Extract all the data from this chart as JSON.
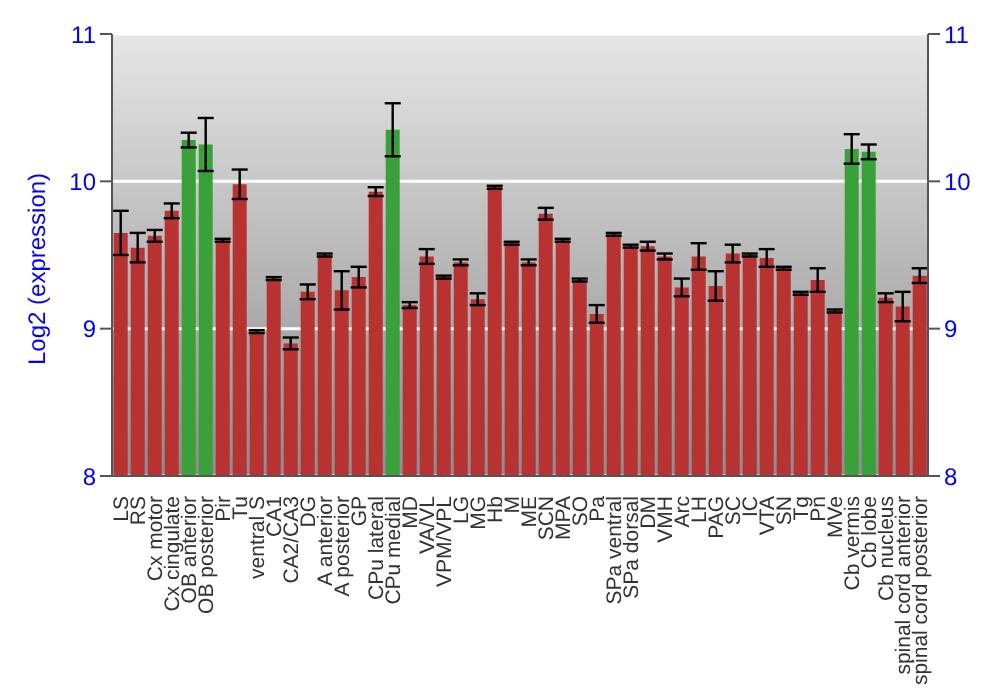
{
  "chart_data": {
    "type": "bar",
    "ylabel": "Log2 (expression)",
    "categories": [
      "LS",
      "RS",
      "Cx motor",
      "Cx cingulate",
      "OB anterior",
      "OB posterior",
      "Pir",
      "Tu",
      "ventral S",
      "CA1",
      "CA2/CA3",
      "DG",
      "A anterior",
      "A posterior",
      "GP",
      "CPu lateral",
      "CPu medial",
      "MD",
      "VA/VL",
      "VPM/VPL",
      "LG",
      "MG",
      "Hb",
      "M",
      "ME",
      "SCN",
      "MPA",
      "SO",
      "Pa",
      "SPa ventral",
      "SPa dorsal",
      "DM",
      "VMH",
      "Arc",
      "LH",
      "PAG",
      "SC",
      "IC",
      "VTA",
      "SN",
      "Tg",
      "Pn",
      "MVe",
      "Cb vermis",
      "Cb lobe",
      "Cb nucleus",
      "spinal cord anterior",
      "spinal cord posterior"
    ],
    "values": [
      9.65,
      9.55,
      9.63,
      9.8,
      10.28,
      10.25,
      9.6,
      9.98,
      8.98,
      9.34,
      8.9,
      9.25,
      9.5,
      9.26,
      9.35,
      9.93,
      10.35,
      9.16,
      9.49,
      9.35,
      9.45,
      9.2,
      9.96,
      9.58,
      9.45,
      9.78,
      9.6,
      9.33,
      9.1,
      9.64,
      9.56,
      9.56,
      9.49,
      9.28,
      9.49,
      9.29,
      9.51,
      9.5,
      9.48,
      9.41,
      9.24,
      9.33,
      9.12,
      10.22,
      10.2,
      9.21,
      9.15,
      9.36
    ],
    "errors": [
      0.15,
      0.1,
      0.04,
      0.05,
      0.05,
      0.18,
      0.01,
      0.1,
      0.01,
      0.01,
      0.04,
      0.05,
      0.01,
      0.13,
      0.07,
      0.03,
      0.18,
      0.02,
      0.05,
      0.01,
      0.02,
      0.04,
      0.01,
      0.01,
      0.02,
      0.04,
      0.01,
      0.01,
      0.06,
      0.01,
      0.01,
      0.03,
      0.02,
      0.06,
      0.09,
      0.1,
      0.06,
      0.01,
      0.06,
      0.01,
      0.01,
      0.08,
      0.01,
      0.1,
      0.05,
      0.03,
      0.1,
      0.05
    ],
    "colors": [
      "#b83232",
      "#b83232",
      "#b83232",
      "#b83232",
      "#3aa03a",
      "#3aa03a",
      "#b83232",
      "#b83232",
      "#b83232",
      "#b83232",
      "#b83232",
      "#b83232",
      "#b83232",
      "#b83232",
      "#b83232",
      "#b83232",
      "#3aa03a",
      "#b83232",
      "#b83232",
      "#b83232",
      "#b83232",
      "#b83232",
      "#b83232",
      "#b83232",
      "#b83232",
      "#b83232",
      "#b83232",
      "#b83232",
      "#b83232",
      "#b83232",
      "#b83232",
      "#b83232",
      "#b83232",
      "#b83232",
      "#b83232",
      "#b83232",
      "#b83232",
      "#b83232",
      "#b83232",
      "#b83232",
      "#b83232",
      "#b83232",
      "#b83232",
      "#3aa03a",
      "#3aa03a",
      "#b83232",
      "#b83232",
      "#b83232"
    ],
    "ylim": [
      8,
      11
    ],
    "yticks": [
      8,
      9,
      10,
      11
    ],
    "y2lim": [
      8,
      11
    ],
    "y2ticks": [
      8,
      9,
      10,
      11
    ],
    "grid": "y"
  }
}
